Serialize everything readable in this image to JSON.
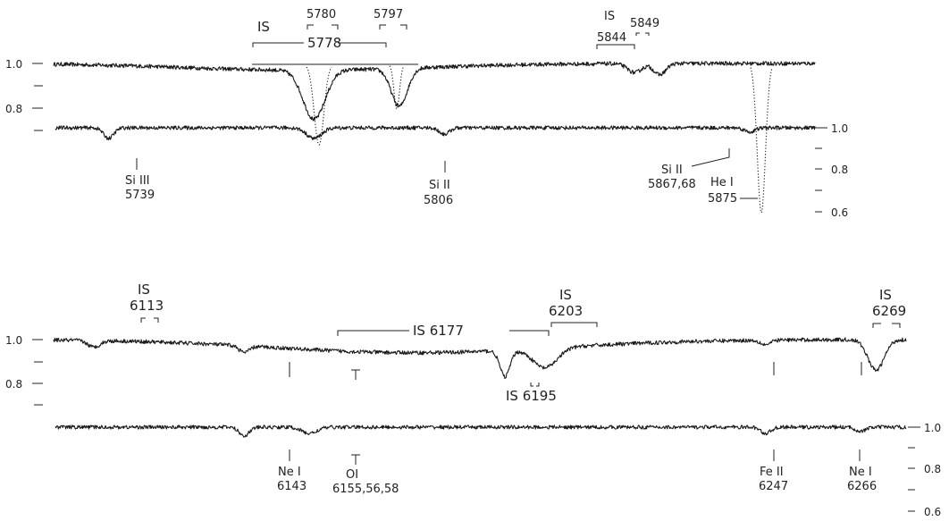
{
  "chart_data": {
    "type": "line",
    "panels": [
      {
        "name": "5739-5880",
        "xrange": [
          5728,
          5880
        ],
        "y_axis_left": {
          "ticks": [
            "1.0",
            "0.8"
          ],
          "minor_ticks": 2
        },
        "y_axis_right": {
          "ticks": [
            "1.0",
            "0.8",
            "0.6"
          ],
          "minor_ticks": 2
        },
        "series": [
          {
            "trace": "upper",
            "continuum": 1.0,
            "features": [
              {
                "x": 5778,
                "depth": 0.03,
                "width": 24
              },
              {
                "x": 5780,
                "depth": 0.22,
                "width": 2.2
              },
              {
                "x": 5797,
                "depth": 0.17,
                "width": 1.6
              },
              {
                "x": 5844,
                "depth": 0.04,
                "width": 1.4
              },
              {
                "x": 5849,
                "depth": 0.05,
                "width": 1.2
              },
              {
                "x": 5875,
                "depth": 0.2,
                "width": 2.0
              }
            ]
          },
          {
            "trace": "lower",
            "continuum": 1.0,
            "features": [
              {
                "x": 5739,
                "depth": 0.05,
                "width": 1.0
              },
              {
                "x": 5780,
                "depth": 0.05,
                "width": 1.5
              },
              {
                "x": 5806,
                "depth": 0.03,
                "width": 1.0
              },
              {
                "x": 5867,
                "depth": 0.02,
                "width": 1.0
              },
              {
                "x": 5875,
                "depth": 0.4,
                "width": 1.8
              }
            ]
          }
        ]
      },
      {
        "name": "6105-6275",
        "xrange": [
          6105,
          6275
        ],
        "y_axis_left": {
          "ticks": [
            "1.0",
            "0.8"
          ],
          "minor_ticks": 2
        },
        "y_axis_right": {
          "ticks": [
            "1.0",
            "0.8",
            "0.6"
          ],
          "minor_ticks": 2
        },
        "series": [
          {
            "trace": "upper",
            "continuum": 1.0,
            "features": [
              {
                "x": 6113,
                "depth": 0.03,
                "width": 1.2
              },
              {
                "x": 6143,
                "depth": 0.03,
                "width": 1.0
              },
              {
                "x": 6177,
                "depth": 0.06,
                "width": 28
              },
              {
                "x": 6195,
                "depth": 0.12,
                "width": 1.0
              },
              {
                "x": 6203,
                "depth": 0.09,
                "width": 2.4
              },
              {
                "x": 6247,
                "depth": 0.02,
                "width": 1.0
              },
              {
                "x": 6269,
                "depth": 0.14,
                "width": 1.6
              }
            ]
          },
          {
            "trace": "lower",
            "continuum": 1.0,
            "features": [
              {
                "x": 6143,
                "depth": 0.04,
                "width": 1.0
              },
              {
                "x": 6156,
                "depth": 0.03,
                "width": 1.5
              },
              {
                "x": 6247,
                "depth": 0.03,
                "width": 1.0
              },
              {
                "x": 6266,
                "depth": 0.02,
                "width": 1.0
              }
            ]
          }
        ]
      }
    ]
  },
  "labels": {
    "p1": {
      "is_left": "IS",
      "l5780": "5780",
      "l5797": "5797",
      "l5778": "5778",
      "is_right": "IS",
      "l5849": "5849",
      "l5844": "5844",
      "si3_name": "Si III",
      "si3_wl": "5739",
      "si2_name": "Si II",
      "si2_wl": "5806",
      "si2b_name": "Si II",
      "si2b_wl": "5867,68",
      "he_name": "He I",
      "he_wl": "5875"
    },
    "p2": {
      "is6113_name": "IS",
      "is6113_wl": "6113",
      "is6177": "IS 6177",
      "is6203_name": "IS",
      "is6203_wl": "6203",
      "is6269_name": "IS",
      "is6269_wl": "6269",
      "is6195": "IS 6195",
      "ne1_name": "Ne I",
      "ne1_wl": "6143",
      "o1_name": "OI",
      "o1_wl": "6155,56,58",
      "fe2_name": "Fe II",
      "fe2_wl": "6247",
      "ne2_name": "Ne I",
      "ne2_wl": "6266"
    }
  }
}
